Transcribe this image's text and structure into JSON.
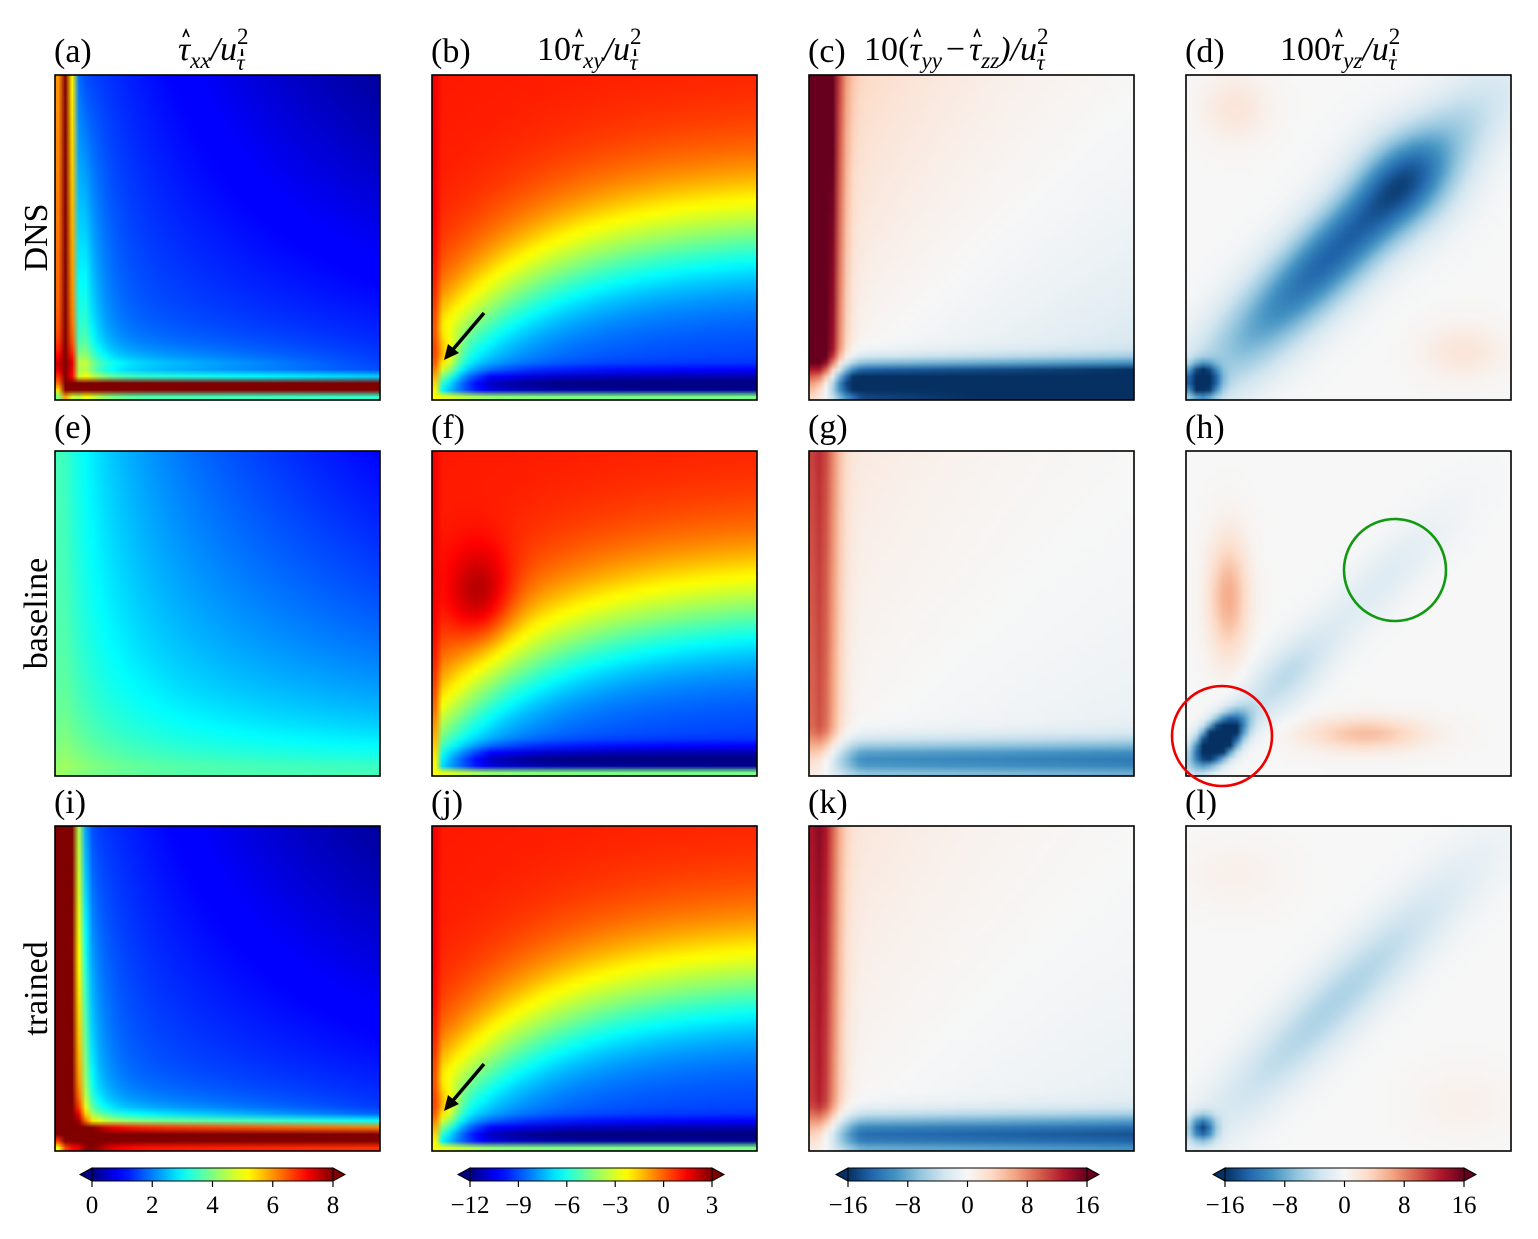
{
  "chart_data": {
    "type": "heatmap",
    "layout": "3 rows x 4 columns of contour maps",
    "rows": [
      {
        "label": "DNS",
        "panels": [
          "(a)",
          "(b)",
          "(c)",
          "(d)"
        ]
      },
      {
        "label": "baseline",
        "panels": [
          "(e)",
          "(f)",
          "(g)",
          "(h)"
        ]
      },
      {
        "label": "trained",
        "panels": [
          "(i)",
          "(j)",
          "(k)",
          "(l)"
        ]
      }
    ],
    "columns": [
      {
        "title_parts": [
          "",
          "τ",
          "xx",
          "/u",
          "2",
          "τ"
        ],
        "colormap": "jet",
        "colorbar": {
          "ticks": [
            0,
            2,
            4,
            6,
            8
          ],
          "tick_labels": [
            "0",
            "2",
            "4",
            "6",
            "8"
          ],
          "range": [
            0,
            8
          ],
          "extend": "both"
        }
      },
      {
        "title_parts": [
          "10",
          "τ",
          "xy",
          "/u",
          "2",
          "τ"
        ],
        "colormap": "jet",
        "colorbar": {
          "ticks": [
            -12,
            -9,
            -6,
            -3,
            0,
            3
          ],
          "tick_labels": [
            "−12",
            "−9",
            "−6",
            "−3",
            "0",
            "3"
          ],
          "range": [
            -12,
            3
          ],
          "extend": "both"
        }
      },
      {
        "title_parts": [
          "10(",
          "τ",
          "yy",
          "−",
          "τ",
          "zz",
          ")/u",
          "2",
          "τ"
        ],
        "colormap": "RdBu_r",
        "colorbar": {
          "ticks": [
            -16,
            -8,
            0,
            8,
            16
          ],
          "tick_labels": [
            "−16",
            "−8",
            "0",
            "8",
            "16"
          ],
          "range": [
            -16,
            16
          ],
          "extend": "both"
        }
      },
      {
        "title_parts": [
          "100",
          "τ",
          "yz",
          "/u",
          "2",
          "τ"
        ],
        "colormap": "RdBu_r",
        "colorbar": {
          "ticks": [
            -16,
            -8,
            0,
            8,
            16
          ],
          "tick_labels": [
            "−16",
            "−8",
            "0",
            "8",
            "16"
          ],
          "range": [
            -16,
            16
          ],
          "extend": "both"
        }
      }
    ],
    "annotations": [
      {
        "panel": "(b)",
        "kind": "arrow",
        "color": "#000000"
      },
      {
        "panel": "(j)",
        "kind": "arrow",
        "color": "#000000"
      },
      {
        "panel": "(h)",
        "kind": "circle",
        "color": "#ee0000"
      },
      {
        "panel": "(h)",
        "kind": "circle",
        "color": "#119911"
      }
    ],
    "grid": false,
    "axes_ticks": "none"
  }
}
